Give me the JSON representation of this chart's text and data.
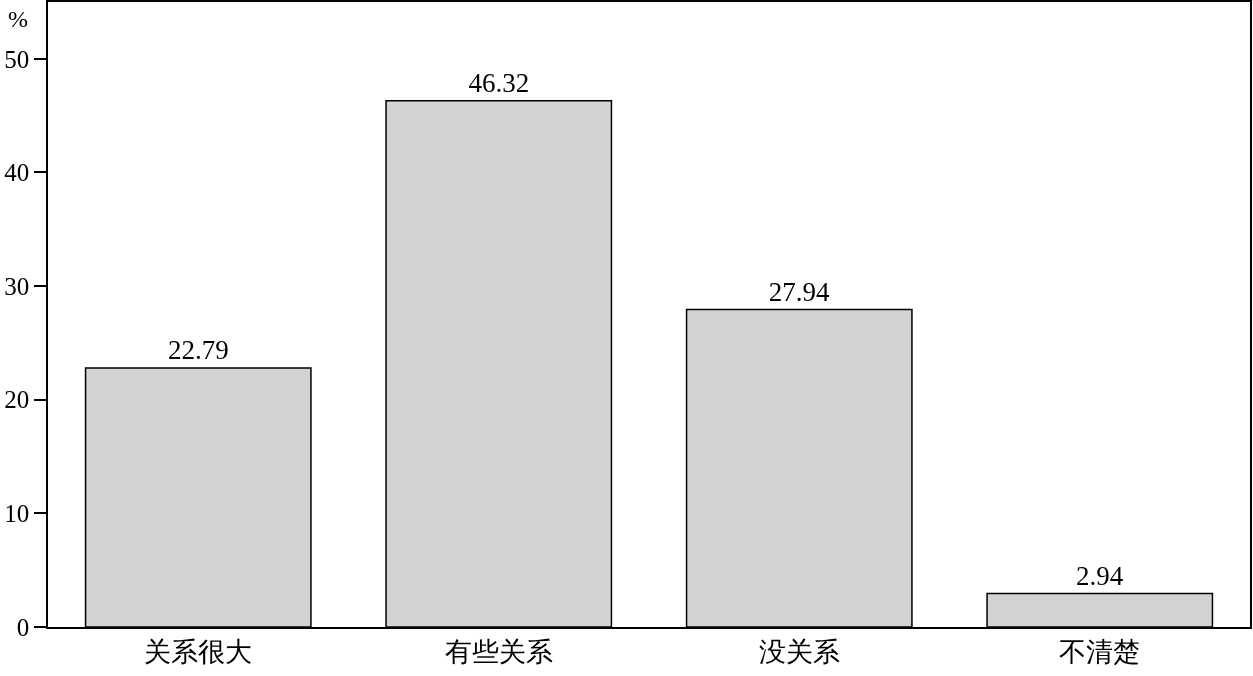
{
  "chart_data": {
    "type": "bar",
    "ylabel": "%",
    "categories": [
      "关系很大",
      "有些关系",
      "没关系",
      "不清楚"
    ],
    "values": [
      22.79,
      46.32,
      27.94,
      2.94
    ],
    "color": "#d3d3d3",
    "ylim": [
      0,
      55
    ],
    "yticks": [
      0,
      10,
      20,
      30,
      40,
      50
    ],
    "data_labels": true
  }
}
